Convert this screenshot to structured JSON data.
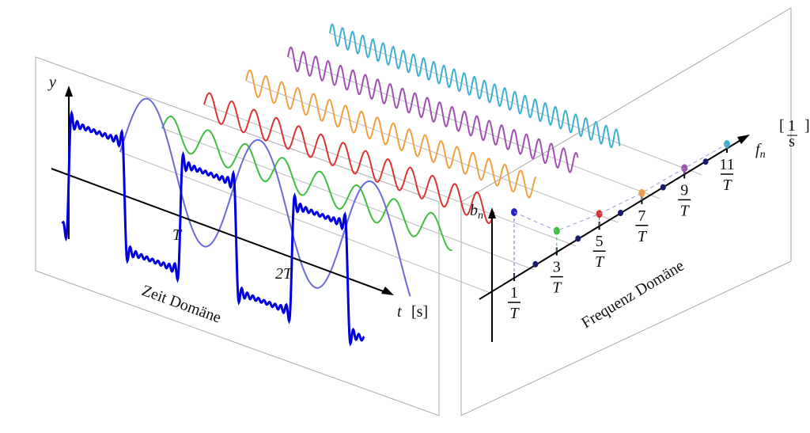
{
  "time_domain": {
    "y_label": "y",
    "x_label": "t",
    "x_unit": "[s]",
    "ticks": [
      "T",
      "2T"
    ],
    "title": "Zeit Domäne"
  },
  "frequency_domain": {
    "y_label": "b",
    "y_sub": "n",
    "x_label": "f",
    "x_sub": "n",
    "x_unit_num": "1",
    "x_unit_den": "s",
    "ticks": [
      {
        "num": "1",
        "den": "T"
      },
      {
        "num": "3",
        "den": "T"
      },
      {
        "num": "5",
        "den": "T"
      },
      {
        "num": "7",
        "den": "T"
      },
      {
        "num": "9",
        "den": "T"
      },
      {
        "num": "11",
        "den": "T"
      }
    ],
    "title": "Frequenz Domäne"
  }
}
